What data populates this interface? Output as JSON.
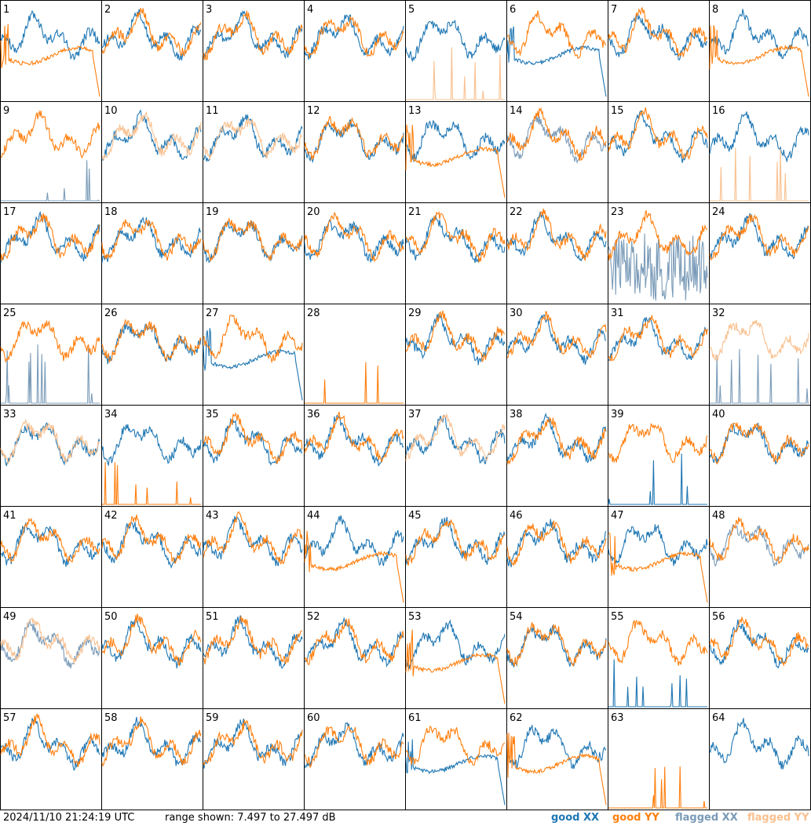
{
  "page": {
    "timestamp": "2024/11/10 21:24:19 UTC",
    "range_text": "range shown: 7.497 to 27.497 dB"
  },
  "legend": [
    {
      "label": "good XX",
      "color": "#1f77b4"
    },
    {
      "label": "good YY",
      "color": "#ff7f0e"
    },
    {
      "label": "flagged XX",
      "color": "#7a9bb8"
    },
    {
      "label": "flagged YY",
      "color": "#f9c08f"
    }
  ],
  "chart_data": {
    "type": "line",
    "title": "",
    "xlabel": "",
    "ylabel": "",
    "ylim": [
      7.497,
      27.497
    ],
    "grid_layout": "8x8",
    "colors": {
      "good_xx": "#1f77b4",
      "good_yy": "#ff7f0e",
      "flagged_xx": "#7a9bb8",
      "flagged_yy": "#f9c08f"
    },
    "panels": [
      {
        "id": "1",
        "xx": "good",
        "yy": "good",
        "xx_style": "normal",
        "yy_style": "droop"
      },
      {
        "id": "2",
        "xx": "good",
        "yy": "good",
        "xx_style": "normal",
        "yy_style": "normal"
      },
      {
        "id": "3",
        "xx": "good",
        "yy": "good",
        "xx_style": "normal",
        "yy_style": "normal"
      },
      {
        "id": "4",
        "xx": "good",
        "yy": "good",
        "xx_style": "normal",
        "yy_style": "normal"
      },
      {
        "id": "5",
        "xx": "good",
        "yy": "flagged",
        "xx_style": "normal",
        "yy_style": "spikes"
      },
      {
        "id": "6",
        "xx": "good",
        "yy": "good",
        "xx_style": "droop",
        "yy_style": "normal"
      },
      {
        "id": "7",
        "xx": "good",
        "yy": "good",
        "xx_style": "normal",
        "yy_style": "normal"
      },
      {
        "id": "8",
        "xx": "good",
        "yy": "good",
        "xx_style": "normal",
        "yy_style": "droop"
      },
      {
        "id": "9",
        "xx": "flagged",
        "yy": "good",
        "xx_style": "spikes",
        "yy_style": "normal"
      },
      {
        "id": "10",
        "xx": "good",
        "yy": "flagged",
        "xx_style": "normal",
        "yy_style": "normal"
      },
      {
        "id": "11",
        "xx": "good",
        "yy": "flagged",
        "xx_style": "normal",
        "yy_style": "normal"
      },
      {
        "id": "12",
        "xx": "good",
        "yy": "good",
        "xx_style": "normal",
        "yy_style": "normal"
      },
      {
        "id": "13",
        "xx": "good",
        "yy": "good",
        "xx_style": "normal",
        "yy_style": "droop"
      },
      {
        "id": "14",
        "xx": "flagged",
        "yy": "good",
        "xx_style": "normal",
        "yy_style": "normal"
      },
      {
        "id": "15",
        "xx": "good",
        "yy": "good",
        "xx_style": "normal",
        "yy_style": "normal"
      },
      {
        "id": "16",
        "xx": "good",
        "yy": "flagged",
        "xx_style": "normal",
        "yy_style": "spikes"
      },
      {
        "id": "17",
        "xx": "good",
        "yy": "good",
        "xx_style": "normal",
        "yy_style": "normal"
      },
      {
        "id": "18",
        "xx": "good",
        "yy": "good",
        "xx_style": "normal",
        "yy_style": "normal"
      },
      {
        "id": "19",
        "xx": "good",
        "yy": "good",
        "xx_style": "normal",
        "yy_style": "normal"
      },
      {
        "id": "20",
        "xx": "good",
        "yy": "good",
        "xx_style": "normal",
        "yy_style": "normal"
      },
      {
        "id": "21",
        "xx": "good",
        "yy": "good",
        "xx_style": "normal",
        "yy_style": "normal"
      },
      {
        "id": "22",
        "xx": "good",
        "yy": "good",
        "xx_style": "normal",
        "yy_style": "normal"
      },
      {
        "id": "23",
        "xx": "flagged",
        "yy": "good",
        "xx_style": "noisy",
        "yy_style": "normal"
      },
      {
        "id": "24",
        "xx": "good",
        "yy": "good",
        "xx_style": "normal",
        "yy_style": "normal"
      },
      {
        "id": "25",
        "xx": "flagged",
        "yy": "good",
        "xx_style": "spikes",
        "yy_style": "normal"
      },
      {
        "id": "26",
        "xx": "good",
        "yy": "good",
        "xx_style": "normal",
        "yy_style": "normal"
      },
      {
        "id": "27",
        "xx": "good",
        "yy": "good",
        "xx_style": "droop",
        "yy_style": "normal"
      },
      {
        "id": "28",
        "xx": "none",
        "yy": "good",
        "xx_style": "none",
        "yy_style": "spikes"
      },
      {
        "id": "29",
        "xx": "good",
        "yy": "good",
        "xx_style": "normal",
        "yy_style": "normal"
      },
      {
        "id": "30",
        "xx": "good",
        "yy": "good",
        "xx_style": "normal",
        "yy_style": "normal"
      },
      {
        "id": "31",
        "xx": "good",
        "yy": "good",
        "xx_style": "normal",
        "yy_style": "normal"
      },
      {
        "id": "32",
        "xx": "flagged",
        "yy": "flagged",
        "xx_style": "spikes",
        "yy_style": "normal"
      },
      {
        "id": "33",
        "xx": "good",
        "yy": "flagged",
        "xx_style": "normal",
        "yy_style": "normal"
      },
      {
        "id": "34",
        "xx": "good",
        "yy": "good",
        "xx_style": "normal",
        "yy_style": "spikes"
      },
      {
        "id": "35",
        "xx": "good",
        "yy": "good",
        "xx_style": "normal",
        "yy_style": "normal"
      },
      {
        "id": "36",
        "xx": "good",
        "yy": "good",
        "xx_style": "normal",
        "yy_style": "normal"
      },
      {
        "id": "37",
        "xx": "good",
        "yy": "flagged",
        "xx_style": "normal",
        "yy_style": "normal"
      },
      {
        "id": "38",
        "xx": "good",
        "yy": "good",
        "xx_style": "normal",
        "yy_style": "normal"
      },
      {
        "id": "39",
        "xx": "good",
        "yy": "good",
        "xx_style": "spikes",
        "yy_style": "normal"
      },
      {
        "id": "40",
        "xx": "good",
        "yy": "good",
        "xx_style": "normal",
        "yy_style": "normal"
      },
      {
        "id": "41",
        "xx": "good",
        "yy": "good",
        "xx_style": "normal",
        "yy_style": "normal"
      },
      {
        "id": "42",
        "xx": "good",
        "yy": "good",
        "xx_style": "normal",
        "yy_style": "normal"
      },
      {
        "id": "43",
        "xx": "good",
        "yy": "good",
        "xx_style": "normal",
        "yy_style": "normal"
      },
      {
        "id": "44",
        "xx": "good",
        "yy": "good",
        "xx_style": "normal",
        "yy_style": "droop"
      },
      {
        "id": "45",
        "xx": "good",
        "yy": "good",
        "xx_style": "normal",
        "yy_style": "normal"
      },
      {
        "id": "46",
        "xx": "good",
        "yy": "good",
        "xx_style": "normal",
        "yy_style": "normal"
      },
      {
        "id": "47",
        "xx": "good",
        "yy": "good",
        "xx_style": "normal",
        "yy_style": "droop"
      },
      {
        "id": "48",
        "xx": "flagged",
        "yy": "good",
        "xx_style": "normal",
        "yy_style": "normal"
      },
      {
        "id": "49",
        "xx": "flagged",
        "yy": "flagged",
        "xx_style": "normal",
        "yy_style": "normal"
      },
      {
        "id": "50",
        "xx": "good",
        "yy": "good",
        "xx_style": "normal",
        "yy_style": "normal"
      },
      {
        "id": "51",
        "xx": "good",
        "yy": "good",
        "xx_style": "normal",
        "yy_style": "normal"
      },
      {
        "id": "52",
        "xx": "good",
        "yy": "good",
        "xx_style": "normal",
        "yy_style": "normal"
      },
      {
        "id": "53",
        "xx": "good",
        "yy": "good",
        "xx_style": "normal",
        "yy_style": "droop"
      },
      {
        "id": "54",
        "xx": "good",
        "yy": "good",
        "xx_style": "normal",
        "yy_style": "normal"
      },
      {
        "id": "55",
        "xx": "good",
        "yy": "good",
        "xx_style": "spikes",
        "yy_style": "normal"
      },
      {
        "id": "56",
        "xx": "good",
        "yy": "good",
        "xx_style": "normal",
        "yy_style": "normal"
      },
      {
        "id": "57",
        "xx": "good",
        "yy": "good",
        "xx_style": "normal",
        "yy_style": "normal"
      },
      {
        "id": "58",
        "xx": "good",
        "yy": "good",
        "xx_style": "normal",
        "yy_style": "normal"
      },
      {
        "id": "59",
        "xx": "good",
        "yy": "good",
        "xx_style": "normal",
        "yy_style": "normal"
      },
      {
        "id": "60",
        "xx": "good",
        "yy": "good",
        "xx_style": "normal",
        "yy_style": "normal"
      },
      {
        "id": "61",
        "xx": "good",
        "yy": "good",
        "xx_style": "droop",
        "yy_style": "normal"
      },
      {
        "id": "62",
        "xx": "good",
        "yy": "good",
        "xx_style": "normal",
        "yy_style": "droop"
      },
      {
        "id": "63",
        "xx": "none",
        "yy": "good",
        "xx_style": "none",
        "yy_style": "spikes"
      },
      {
        "id": "64",
        "xx": "good",
        "yy": "none",
        "xx_style": "normal",
        "yy_style": "none"
      }
    ]
  }
}
